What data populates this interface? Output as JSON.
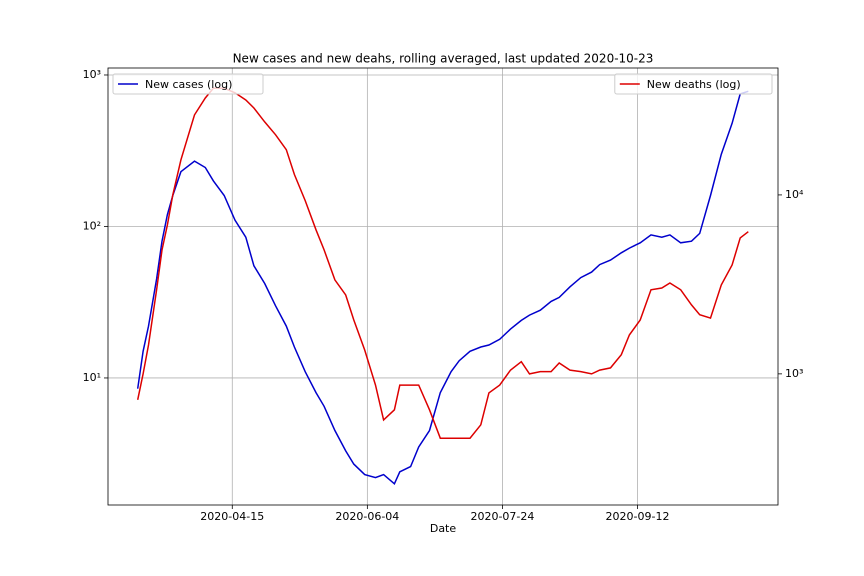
{
  "chart_data": {
    "type": "line",
    "title": "New cases and new deahs, rolling averaged, last updated 2020-10-23",
    "x_label": "Date",
    "x": [
      "2020-03-11",
      "2020-03-13",
      "2020-03-15",
      "2020-03-18",
      "2020-03-20",
      "2020-03-22",
      "2020-03-24",
      "2020-03-27",
      "2020-04-01",
      "2020-04-05",
      "2020-04-08",
      "2020-04-12",
      "2020-04-16",
      "2020-04-20",
      "2020-04-23",
      "2020-04-27",
      "2020-05-01",
      "2020-05-05",
      "2020-05-08",
      "2020-05-12",
      "2020-05-16",
      "2020-05-19",
      "2020-05-23",
      "2020-05-27",
      "2020-05-30",
      "2020-06-03",
      "2020-06-07",
      "2020-06-10",
      "2020-06-14",
      "2020-06-16",
      "2020-06-20",
      "2020-06-23",
      "2020-06-27",
      "2020-07-01",
      "2020-07-05",
      "2020-07-08",
      "2020-07-12",
      "2020-07-16",
      "2020-07-19",
      "2020-07-23",
      "2020-07-27",
      "2020-07-31",
      "2020-08-03",
      "2020-08-07",
      "2020-08-11",
      "2020-08-14",
      "2020-08-18",
      "2020-08-22",
      "2020-08-26",
      "2020-08-29",
      "2020-09-02",
      "2020-09-06",
      "2020-09-09",
      "2020-09-13",
      "2020-09-17",
      "2020-09-21",
      "2020-09-24",
      "2020-09-28",
      "2020-10-02",
      "2020-10-05",
      "2020-10-09",
      "2020-10-13",
      "2020-10-17",
      "2020-10-20",
      "2020-10-23"
    ],
    "series": [
      {
        "name": "New cases (log)",
        "color": "#0000cc",
        "axis": "y",
        "values": [
          8.5,
          15,
          22,
          45,
          80,
          120,
          160,
          230,
          270,
          245,
          200,
          160,
          110,
          85,
          55,
          42,
          30,
          22,
          16,
          11,
          8,
          6.5,
          4.5,
          3.3,
          2.7,
          2.3,
          2.2,
          2.3,
          2.0,
          2.4,
          2.6,
          3.5,
          4.5,
          8,
          11,
          13,
          15,
          16,
          16.5,
          18,
          21,
          24,
          26,
          28,
          32,
          34,
          40,
          46,
          50,
          56,
          60,
          67,
          72,
          78,
          88,
          85,
          88,
          78,
          80,
          90,
          160,
          300,
          480,
          750,
          780
        ]
      },
      {
        "name": "New deaths (log)",
        "color": "#dd0000",
        "axis": "y2",
        "values": [
          716,
          1000,
          1450,
          2950,
          4920,
          6800,
          10000,
          15700,
          28000,
          34800,
          39500,
          39500,
          37200,
          33900,
          30600,
          25600,
          21700,
          17900,
          13000,
          9300,
          6380,
          4930,
          3350,
          2760,
          2000,
          1360,
          865,
          553,
          630,
          865,
          865,
          865,
          630,
          437,
          437,
          437,
          437,
          519,
          783,
          865,
          1050,
          1170,
          1000,
          1030,
          1030,
          1150,
          1050,
          1030,
          1000,
          1050,
          1080,
          1280,
          1650,
          2000,
          2950,
          3020,
          3220,
          2950,
          2430,
          2140,
          2050,
          3140,
          4060,
          5750,
          6230
        ]
      }
    ],
    "xlim": [
      "2020-02-29",
      "2020-11-03"
    ],
    "xticks": [
      "2020-04-15",
      "2020-06-04",
      "2020-07-24",
      "2020-09-12"
    ],
    "ylim": [
      1.45,
      1112
    ],
    "ylog": true,
    "yticks": [
      {
        "value": 10,
        "label": "10¹"
      },
      {
        "value": 100,
        "label": "10²"
      },
      {
        "value": 1000,
        "label": "10³"
      }
    ],
    "y2lim": [
      185,
      51200
    ],
    "y2log": true,
    "y2ticks": [
      {
        "value": 1000,
        "label": "10³"
      },
      {
        "value": 10000,
        "label": "10⁴"
      }
    ],
    "grid": true,
    "legend": [
      "upper left",
      "upper right"
    ]
  }
}
